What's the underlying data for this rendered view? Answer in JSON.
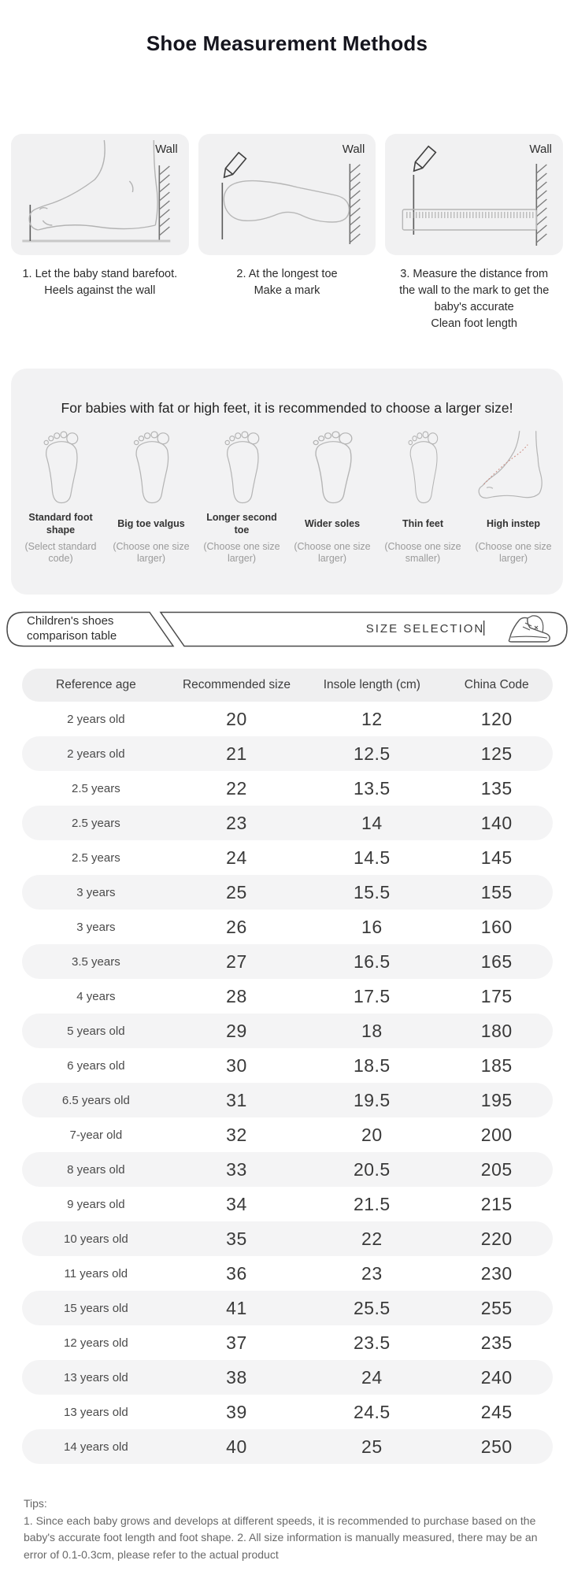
{
  "title": "Shoe Measurement Methods",
  "steps": [
    {
      "wall": "Wall",
      "icon": "foot-profile-against-wall",
      "lines": [
        "1. Let the baby stand barefoot.",
        "Heels against the wall"
      ]
    },
    {
      "wall": "Wall",
      "icon": "foot-outline-pencil-mark",
      "lines": [
        "2. At the longest toe",
        "Make a mark"
      ]
    },
    {
      "wall": "Wall",
      "icon": "ruler-wall-measure",
      "lines": [
        "3. Measure the distance from",
        "the wall to the mark to get the",
        "baby's accurate",
        "Clean foot length"
      ]
    }
  ],
  "fit_note": {
    "heading": "For babies with fat or high feet, it is recommended to choose a larger size!",
    "foot_types": [
      {
        "label": "Standard foot shape",
        "note": "(Select standard code)",
        "icon": "foot-top-icon"
      },
      {
        "label": "Big toe valgus",
        "note": "(Choose one size larger)",
        "icon": "foot-top-icon"
      },
      {
        "label": "Longer second toe",
        "note": "(Choose one size larger)",
        "icon": "foot-top-icon"
      },
      {
        "label": "Wider soles",
        "note": "(Choose one size larger)",
        "icon": "foot-top-icon"
      },
      {
        "label": "Thin feet",
        "note": "(Choose one size smaller)",
        "icon": "foot-top-icon"
      },
      {
        "label": "High instep",
        "note": "(Choose one size larger)",
        "icon": "foot-side-icon"
      }
    ]
  },
  "banner": {
    "tab_line1": "Children's shoes",
    "tab_line2": "comparison table",
    "right_label": "SIZE SELECTION",
    "divider": "|",
    "shoe_icon": "sneaker-icon"
  },
  "size_table": {
    "headers": [
      "Reference age",
      "Recommended size",
      "Insole length (cm)",
      "China Code"
    ],
    "rows": [
      [
        "2 years old",
        "20",
        "12",
        "120"
      ],
      [
        "2 years old",
        "21",
        "12.5",
        "125"
      ],
      [
        "2.5 years",
        "22",
        "13.5",
        "135"
      ],
      [
        "2.5 years",
        "23",
        "14",
        "140"
      ],
      [
        "2.5 years",
        "24",
        "14.5",
        "145"
      ],
      [
        "3 years",
        "25",
        "15.5",
        "155"
      ],
      [
        "3 years",
        "26",
        "16",
        "160"
      ],
      [
        "3.5 years",
        "27",
        "16.5",
        "165"
      ],
      [
        "4 years",
        "28",
        "17.5",
        "175"
      ],
      [
        "5 years old",
        "29",
        "18",
        "180"
      ],
      [
        "6 years old",
        "30",
        "18.5",
        "185"
      ],
      [
        "6.5 years old",
        "31",
        "19.5",
        "195"
      ],
      [
        "7-year old",
        "32",
        "20",
        "200"
      ],
      [
        "8 years old",
        "33",
        "20.5",
        "205"
      ],
      [
        "9 years old",
        "34",
        "21.5",
        "215"
      ],
      [
        "10 years old",
        "35",
        "22",
        "220"
      ],
      [
        "11 years old",
        "36",
        "23",
        "230"
      ],
      [
        "15 years old",
        "41",
        "25.5",
        "255"
      ],
      [
        "12 years old",
        "37",
        "23.5",
        "235"
      ],
      [
        "13 years old",
        "38",
        "24",
        "240"
      ],
      [
        "13 years old",
        "39",
        "24.5",
        "245"
      ],
      [
        "14 years old",
        "40",
        "25",
        "250"
      ]
    ]
  },
  "tips": {
    "label": "Tips:",
    "body": "1. Since each baby grows and develops at different speeds, it is recommended to purchase based on the baby's accurate foot length and foot shape. 2. All size information is manually measured, there may be an error of 0.1-0.3cm, please refer to the actual product"
  },
  "colors": {
    "card_bg": "#f1f1f2",
    "section_bg": "#f2f2f3",
    "row_alt_bg": "#f4f4f5",
    "header_bg": "#efeff0",
    "text_dark": "#15151e",
    "note_gray": "#9b9b9b",
    "sketch_gray": "#b3b3b3",
    "dotted_red": "#cc8f85"
  }
}
